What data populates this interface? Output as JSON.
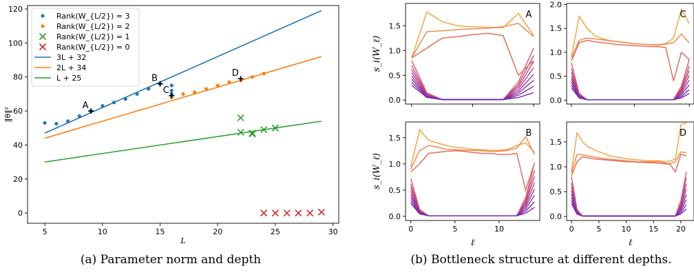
{
  "chart_data": [
    {
      "type": "scatter",
      "panel_caption": "(a) Parameter norm and depth",
      "xlabel": "L",
      "ylabel": "‖θ‖²",
      "xlim": [
        3.5,
        30.5
      ],
      "ylim": [
        -6,
        122
      ],
      "xticks": [
        5,
        10,
        15,
        20,
        25,
        30
      ],
      "yticks": [
        0,
        20,
        40,
        60,
        80,
        100,
        120
      ],
      "grid": false,
      "legend_position": "top-left",
      "scatter_series": [
        {
          "name": "Rank(W_{L/2}) = 3",
          "color": "#1f77b4",
          "marker": "dot",
          "points": [
            [
              5,
              53
            ],
            [
              6,
              52.5
            ],
            [
              7,
              54
            ],
            [
              8,
              57
            ],
            [
              9,
              60
            ],
            [
              10,
              63
            ],
            [
              11,
              65
            ],
            [
              12,
              67
            ],
            [
              13,
              70
            ],
            [
              14,
              73
            ],
            [
              15,
              76
            ],
            [
              16,
              75
            ],
            [
              16,
              72
            ],
            [
              16,
              70
            ]
          ]
        },
        {
          "name": "Rank(W_{L/2}) = 2",
          "color": "#ff7f0e",
          "marker": "dot",
          "points": [
            [
              16,
              68
            ],
            [
              17,
              70
            ],
            [
              18,
              71
            ],
            [
              19,
              73
            ],
            [
              20,
              75
            ],
            [
              21,
              77
            ],
            [
              22,
              78
            ],
            [
              23,
              80
            ],
            [
              24,
              82
            ]
          ]
        },
        {
          "name": "Rank(W_{L/2}) = 1",
          "color": "#2ca02c",
          "marker": "x",
          "points": [
            [
              22,
              56
            ],
            [
              22,
              47.5
            ],
            [
              23,
              47
            ],
            [
              23,
              46.5
            ],
            [
              24,
              49
            ],
            [
              25,
              50
            ]
          ]
        },
        {
          "name": "Rank(W_{L/2}) = 0",
          "color": "#d62728",
          "marker": "x",
          "points": [
            [
              24,
              0
            ],
            [
              25,
              0
            ],
            [
              26,
              0
            ],
            [
              27,
              0
            ],
            [
              28,
              0
            ],
            [
              29,
              0.5
            ]
          ]
        }
      ],
      "line_series": [
        {
          "name": "3L + 32",
          "color": "#1f77b4",
          "x": [
            5,
            29
          ],
          "y": [
            47,
            119
          ]
        },
        {
          "name": "2L + 34",
          "color": "#ff7f0e",
          "x": [
            5,
            29
          ],
          "y": [
            44,
            92
          ]
        },
        {
          "name": "L + 25",
          "color": "#2ca02c",
          "x": [
            5,
            29
          ],
          "y": [
            30,
            54
          ]
        }
      ],
      "annotations": [
        {
          "label": "A",
          "x": 9,
          "y": 60
        },
        {
          "label": "B",
          "x": 15,
          "y": 76
        },
        {
          "label": "C",
          "x": 16,
          "y": 69
        },
        {
          "label": "D",
          "x": 22,
          "y": 79
        }
      ]
    },
    {
      "type": "line",
      "panel_caption": "(b) Bottleneck structure at different depths.",
      "ylabel": "s_i(W_ℓ)",
      "xlabel": "ℓ",
      "subplots": [
        {
          "label": "A",
          "L": 9,
          "xlim": [
            -0.4,
            8.4
          ],
          "ylim": [
            -0.08,
            1.95
          ],
          "yticks": [
            0.0,
            0.5,
            1.0,
            1.5
          ],
          "xticks": [],
          "show_ylabel": true,
          "top": [
            [
              0.85,
              1.78,
              1.58,
              1.5,
              1.48,
              1.47,
              1.46,
              1.75,
              1.3
            ],
            [
              0.85,
              1.38,
              1.4,
              1.42,
              1.44,
              1.45,
              1.48,
              1.55,
              1.28
            ],
            [
              0.85,
              1.05,
              1.25,
              1.28,
              1.32,
              1.35,
              1.3,
              0.5,
              0.8
            ]
          ],
          "start": [
            0.8,
            0.7,
            0.62,
            0.55,
            0.48,
            0.42,
            0.36,
            0.3
          ],
          "end": [
            1.05,
            0.9,
            0.78,
            0.65,
            0.52,
            0.4,
            0.28,
            0.15
          ]
        },
        {
          "label": "B",
          "L": 15,
          "xlim": [
            -0.6,
            14.6
          ],
          "ylim": [
            -0.08,
            1.8
          ],
          "yticks": [
            0.0,
            0.5,
            1.0,
            1.5
          ],
          "xticks": [
            0,
            5,
            10
          ],
          "show_ylabel": true,
          "top": [
            [
              0.95,
              1.65,
              1.45,
              1.4,
              1.35,
              1.32,
              1.3,
              1.28,
              1.27,
              1.26,
              1.26,
              1.28,
              1.35,
              1.4,
              1.22
            ],
            [
              0.9,
              1.25,
              1.35,
              1.32,
              1.28,
              1.27,
              1.26,
              1.26,
              1.25,
              1.24,
              1.24,
              1.26,
              1.3,
              1.52,
              1.18
            ],
            [
              0.85,
              1.0,
              1.2,
              1.22,
              1.24,
              1.25,
              1.24,
              1.22,
              1.2,
              1.2,
              1.18,
              1.18,
              1.2,
              0.5,
              1.02
            ]
          ],
          "start": [
            0.72,
            0.62,
            0.55,
            0.48,
            0.42,
            0.36,
            0.3,
            0.25
          ],
          "end": [
            1.02,
            0.88,
            0.76,
            0.64,
            0.52,
            0.4,
            0.28,
            0.17
          ]
        },
        {
          "label": "C",
          "L": 16,
          "xlim": [
            -0.6,
            15.6
          ],
          "ylim": [
            -0.08,
            2.02
          ],
          "yticks": [
            0.0,
            0.5,
            1.0,
            1.5,
            2.0
          ],
          "xticks": [],
          "show_ylabel": false,
          "top": [
            [
              0.9,
              1.75,
              1.5,
              1.35,
              1.28,
              1.24,
              1.22,
              1.2,
              1.18,
              1.17,
              1.16,
              1.16,
              1.18,
              1.3,
              1.9,
              1.6
            ],
            [
              0.88,
              1.25,
              1.3,
              1.28,
              1.26,
              1.24,
              1.22,
              1.2,
              1.18,
              1.17,
              1.16,
              1.15,
              1.17,
              1.2,
              1.38,
              1.2
            ],
            [
              0.82,
              1.2,
              1.25,
              1.22,
              1.2,
              1.18,
              1.16,
              1.15,
              1.14,
              1.13,
              1.12,
              1.12,
              1.1,
              0.4,
              1.0,
              0.85
            ]
          ],
          "start": [
            0.78,
            0.66,
            0.58,
            0.5,
            0.44,
            0.38,
            0.32,
            0.26
          ],
          "end": [
            0.85,
            0.72,
            0.62,
            0.52,
            0.42,
            0.32,
            0.22,
            0.14
          ]
        },
        {
          "label": "D",
          "L": 22,
          "xlim": [
            -0.9,
            22.4
          ],
          "ylim": [
            -0.08,
            1.9
          ],
          "yticks": [
            0.0,
            0.5,
            1.0,
            1.5
          ],
          "xticks": [
            0,
            5,
            10,
            15,
            20
          ],
          "show_ylabel": false,
          "top": [
            [
              0.9,
              1.68,
              1.5,
              1.4,
              1.35,
              1.3,
              1.26,
              1.22,
              1.2,
              1.18,
              1.16,
              1.15,
              1.14,
              1.13,
              1.12,
              1.12,
              1.12,
              1.1,
              1.12,
              1.15,
              1.85,
              1.88
            ],
            [
              0.88,
              1.25,
              1.24,
              1.22,
              1.2,
              1.18,
              1.16,
              1.15,
              1.14,
              1.13,
              1.12,
              1.11,
              1.1,
              1.1,
              1.1,
              1.1,
              1.1,
              1.08,
              1.06,
              1.1,
              1.3,
              1.28
            ],
            [
              0.82,
              1.1,
              1.2,
              1.18,
              1.16,
              1.15,
              1.14,
              1.13,
              1.12,
              1.11,
              1.1,
              1.1,
              1.09,
              1.09,
              1.08,
              1.08,
              1.07,
              1.06,
              1.05,
              0.9,
              1.25,
              1.22
            ]
          ],
          "start": [
            0.8,
            0.68,
            0.6,
            0.52,
            0.45,
            0.38,
            0.32,
            0.26
          ],
          "end": [
            0.9,
            0.78,
            0.66,
            0.55,
            0.44,
            0.34,
            0.24,
            0.15
          ]
        }
      ]
    }
  ]
}
